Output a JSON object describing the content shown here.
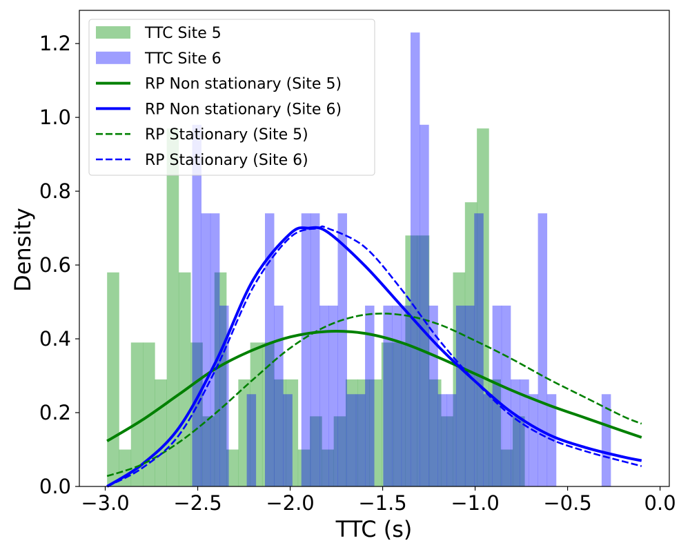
{
  "chart_data": {
    "type": "histogram+line",
    "title": "",
    "xlabel": "TTC (s)",
    "ylabel": "Density",
    "xlim": [
      -3.14,
      0.05
    ],
    "ylim": [
      0.0,
      1.29
    ],
    "xticks": [
      -3.0,
      -2.5,
      -2.0,
      -1.5,
      -1.0,
      -0.5,
      0.0
    ],
    "xtick_labels": [
      "−3.0",
      "−2.5",
      "−2.0",
      "−1.5",
      "−1.0",
      "−0.5",
      "0.0"
    ],
    "yticks": [
      0.0,
      0.2,
      0.4,
      0.6,
      0.8,
      1.0,
      1.2
    ],
    "ytick_labels": [
      "0.0",
      "0.2",
      "0.4",
      "0.6",
      "0.8",
      "1.0",
      "1.2"
    ],
    "legend_position": "top-left",
    "histograms": [
      {
        "name": "TTC Site 5",
        "color": "#2ca02c",
        "opacity": 0.48,
        "bin_start": -2.99,
        "bin_width": 0.0645,
        "values": [
          0.58,
          0.1,
          0.39,
          0.39,
          0.29,
          0.97,
          0.58,
          0.39,
          0.19,
          0.58,
          0.1,
          0.29,
          0.39,
          0.39,
          0.29,
          0.29,
          0.1,
          0.19,
          0.1,
          0.19,
          0.29,
          0.29,
          0.29,
          0.39,
          0.39,
          0.68,
          0.68,
          0.29,
          0.19,
          0.58,
          0.77,
          0.97,
          0.29,
          0.1,
          0.19
        ]
      },
      {
        "name": "TTC Site 6",
        "color": "#0000ff",
        "opacity": 0.38,
        "bin_start": -2.53,
        "bin_width": 0.0492,
        "values": [
          0.98,
          0.74,
          0.74,
          0.49,
          0.0,
          0.0,
          0.25,
          0.0,
          0.74,
          0.49,
          0.25,
          0.0,
          0.74,
          0.74,
          0.49,
          0.49,
          0.74,
          0.25,
          0.25,
          0.49,
          0.0,
          0.49,
          0.49,
          0.49,
          1.23,
          0.98,
          0.49,
          0.25,
          0.25,
          0.49,
          0.49,
          0.74,
          0.25,
          0.49,
          0.49,
          0.29,
          0.29,
          0.25,
          0.74,
          0.25,
          0.0,
          0.0,
          0.0,
          0.0,
          0.0,
          0.25
        ]
      }
    ],
    "series": [
      {
        "name": "TTC Site 5",
        "kind": "patch",
        "color": "#2ca02c",
        "opacity": 0.48
      },
      {
        "name": "TTC Site 6",
        "kind": "patch",
        "color": "#0000ff",
        "opacity": 0.38
      },
      {
        "name": "RP Non stationary (Site 5)",
        "kind": "line",
        "style": "solid",
        "color": "#008000",
        "x": [
          -2.99,
          -2.8,
          -2.6,
          -2.4,
          -2.2,
          -2.0,
          -1.8,
          -1.6,
          -1.4,
          -1.2,
          -1.0,
          -0.8,
          -0.6,
          -0.4,
          -0.2,
          -0.1
        ],
        "y": [
          0.123,
          0.18,
          0.25,
          0.32,
          0.37,
          0.405,
          0.42,
          0.415,
          0.39,
          0.35,
          0.305,
          0.26,
          0.22,
          0.185,
          0.15,
          0.133
        ]
      },
      {
        "name": "RP Non stationary (Site 6)",
        "kind": "line",
        "style": "solid",
        "color": "#0000ff",
        "x": [
          -2.99,
          -2.8,
          -2.6,
          -2.4,
          -2.2,
          -2.0,
          -1.9,
          -1.8,
          -1.6,
          -1.4,
          -1.2,
          -1.0,
          -0.8,
          -0.6,
          -0.4,
          -0.2,
          -0.1
        ],
        "y": [
          0.0,
          0.06,
          0.16,
          0.34,
          0.56,
          0.685,
          0.7,
          0.69,
          0.6,
          0.49,
          0.38,
          0.285,
          0.2,
          0.14,
          0.105,
          0.08,
          0.07
        ]
      },
      {
        "name": "RP Stationary (Site 5)",
        "kind": "line",
        "style": "dashed",
        "color": "#008000",
        "x": [
          -2.99,
          -2.8,
          -2.6,
          -2.4,
          -2.2,
          -2.0,
          -1.8,
          -1.6,
          -1.4,
          -1.2,
          -1.0,
          -0.8,
          -0.6,
          -0.4,
          -0.2,
          -0.1
        ],
        "y": [
          0.028,
          0.06,
          0.12,
          0.2,
          0.29,
          0.375,
          0.435,
          0.465,
          0.465,
          0.44,
          0.395,
          0.345,
          0.29,
          0.24,
          0.19,
          0.17
        ]
      },
      {
        "name": "RP Stationary (Site 6)",
        "kind": "line",
        "style": "dashed",
        "color": "#0000ff",
        "x": [
          -2.99,
          -2.8,
          -2.6,
          -2.4,
          -2.2,
          -2.0,
          -1.85,
          -1.8,
          -1.6,
          -1.4,
          -1.2,
          -1.0,
          -0.8,
          -0.6,
          -0.4,
          -0.2,
          -0.1
        ],
        "y": [
          0.0,
          0.05,
          0.14,
          0.32,
          0.54,
          0.675,
          0.7,
          0.7,
          0.65,
          0.535,
          0.4,
          0.285,
          0.19,
          0.13,
          0.095,
          0.068,
          0.055
        ]
      }
    ]
  }
}
